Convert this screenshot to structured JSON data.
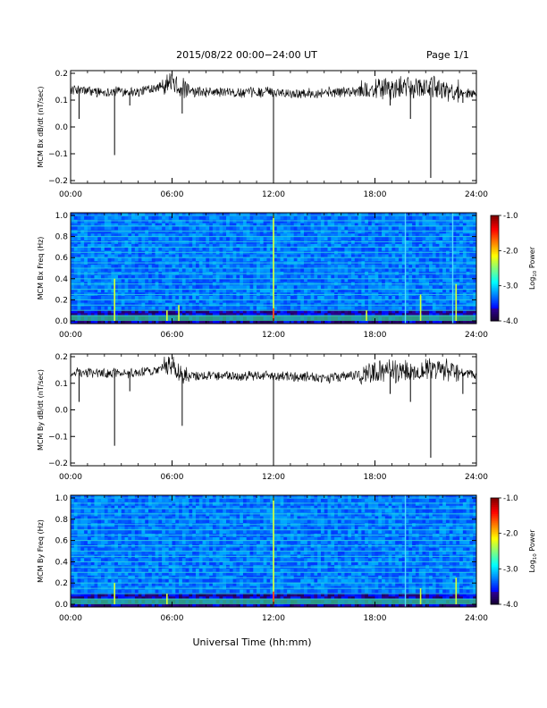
{
  "header": {
    "title": "2015/08/22  00:00−24:00 UT",
    "page": "Page 1/1"
  },
  "xaxis": {
    "label": "Universal Time (hh:mm)",
    "range": [
      0,
      24
    ],
    "ticks": [
      "00:00",
      "06:00",
      "12:00",
      "18:00",
      "24:00"
    ]
  },
  "colorbar": {
    "label_main": "Log",
    "label_sub": "10",
    "label_rest": " Power",
    "range": [
      -4.0,
      -1.0
    ],
    "ticks": [
      "-1.0",
      "-2.0",
      "-3.0",
      "-4.0"
    ]
  },
  "chart_data": [
    {
      "type": "line",
      "name": "bx-line",
      "ylabel": "MCM Bx dB/dt (nT/sec)",
      "ylim": [
        -0.2,
        0.2
      ],
      "yticks": [
        "0.2",
        "0.1",
        "0.0",
        "−0.1",
        "−0.2"
      ],
      "baseline": [
        [
          0,
          0.14
        ],
        [
          1,
          0.135
        ],
        [
          2,
          0.13
        ],
        [
          3,
          0.135
        ],
        [
          4,
          0.13
        ],
        [
          5,
          0.15
        ],
        [
          5.5,
          0.16
        ],
        [
          6,
          0.17
        ],
        [
          6.5,
          0.15
        ],
        [
          7,
          0.13
        ],
        [
          8,
          0.13
        ],
        [
          9,
          0.13
        ],
        [
          10,
          0.125
        ],
        [
          11,
          0.13
        ],
        [
          12,
          0.13
        ],
        [
          13,
          0.125
        ],
        [
          14,
          0.125
        ],
        [
          15,
          0.13
        ],
        [
          16,
          0.13
        ],
        [
          17,
          0.135
        ],
        [
          18,
          0.14
        ],
        [
          19,
          0.14
        ],
        [
          20,
          0.145
        ],
        [
          21,
          0.15
        ],
        [
          22,
          0.14
        ],
        [
          23,
          0.13
        ],
        [
          24,
          0.12
        ]
      ],
      "spikes": [
        [
          0.5,
          0.03
        ],
        [
          2.6,
          -0.105
        ],
        [
          3.5,
          0.08
        ],
        [
          6.6,
          0.05
        ],
        [
          12.0,
          -0.2
        ],
        [
          18.9,
          0.08
        ],
        [
          20.1,
          0.03
        ],
        [
          21.3,
          -0.19
        ],
        [
          23.2,
          0.09
        ]
      ]
    },
    {
      "type": "heatmap",
      "name": "bx-spectrogram",
      "ylabel": "MCM Bx Freq (Hz)",
      "ylim": [
        0.0,
        1.0
      ],
      "yticks": [
        "1.0",
        "0.8",
        "0.6",
        "0.4",
        "0.2",
        "0.0"
      ],
      "harmonic_lines_hz": [
        0.05,
        0.1,
        0.15,
        0.2,
        0.25,
        0.3,
        0.35,
        0.4,
        0.45,
        0.5,
        0.55,
        0.6,
        0.65,
        0.7,
        0.75,
        0.8,
        0.85,
        0.9,
        0.95,
        1.0
      ],
      "vertical_lines_hr": [
        12.0,
        19.8,
        22.6
      ],
      "broadband_hr": [
        [
          2.6,
          0.4
        ],
        [
          5.7,
          0.1
        ],
        [
          6.4,
          0.15
        ],
        [
          12.0,
          1.0
        ],
        [
          17.5,
          0.1
        ],
        [
          20.7,
          0.25
        ],
        [
          22.8,
          0.35
        ]
      ]
    },
    {
      "type": "line",
      "name": "by-line",
      "ylabel": "MCM By dB/dt (nT/sec)",
      "ylim": [
        -0.2,
        0.2
      ],
      "yticks": [
        "0.2",
        "0.1",
        "0.0",
        "−0.1",
        "−0.2"
      ],
      "baseline": [
        [
          0,
          0.14
        ],
        [
          1,
          0.14
        ],
        [
          2,
          0.135
        ],
        [
          3,
          0.14
        ],
        [
          4,
          0.135
        ],
        [
          5,
          0.15
        ],
        [
          5.5,
          0.16
        ],
        [
          6,
          0.17
        ],
        [
          6.5,
          0.14
        ],
        [
          7,
          0.125
        ],
        [
          8,
          0.13
        ],
        [
          9,
          0.13
        ],
        [
          10,
          0.125
        ],
        [
          11,
          0.13
        ],
        [
          12,
          0.13
        ],
        [
          13,
          0.125
        ],
        [
          14,
          0.125
        ],
        [
          15,
          0.12
        ],
        [
          16,
          0.125
        ],
        [
          17,
          0.13
        ],
        [
          18,
          0.14
        ],
        [
          19,
          0.145
        ],
        [
          20,
          0.145
        ],
        [
          21,
          0.15
        ],
        [
          22,
          0.15
        ],
        [
          23,
          0.14
        ],
        [
          24,
          0.13
        ]
      ],
      "spikes": [
        [
          0.5,
          0.03
        ],
        [
          2.6,
          -0.135
        ],
        [
          3.5,
          0.07
        ],
        [
          6.6,
          -0.06
        ],
        [
          12.0,
          -0.2
        ],
        [
          18.9,
          0.06
        ],
        [
          20.1,
          0.03
        ],
        [
          21.3,
          -0.18
        ],
        [
          23.2,
          0.06
        ]
      ]
    },
    {
      "type": "heatmap",
      "name": "by-spectrogram",
      "ylabel": "MCM By Freq (Hz)",
      "ylim": [
        0.0,
        1.0
      ],
      "yticks": [
        "1.0",
        "0.8",
        "0.6",
        "0.4",
        "0.2",
        "0.0"
      ],
      "harmonic_lines_hz": [
        0.05,
        0.1,
        0.15,
        0.2,
        0.25,
        0.3,
        0.35,
        0.4,
        0.45,
        0.5,
        0.55,
        0.6,
        0.65,
        0.7,
        0.75,
        0.8,
        0.85,
        0.9,
        0.95,
        1.0
      ],
      "vertical_lines_hr": [
        12.0,
        19.8
      ],
      "broadband_hr": [
        [
          2.6,
          0.2
        ],
        [
          5.7,
          0.1
        ],
        [
          12.0,
          1.0
        ],
        [
          20.7,
          0.15
        ],
        [
          22.8,
          0.25
        ]
      ]
    }
  ]
}
